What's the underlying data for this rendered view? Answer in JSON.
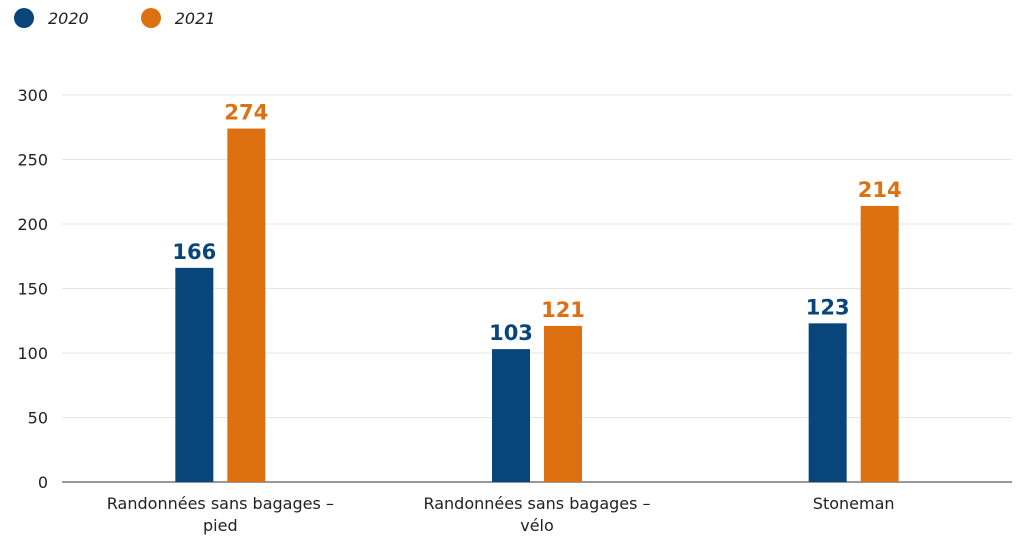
{
  "chart_data": {
    "type": "bar",
    "categories": [
      [
        "Randonnées sans bagages –",
        "pied"
      ],
      [
        "Randonnées sans bagages –",
        "vélo"
      ],
      [
        "Stoneman"
      ]
    ],
    "series": [
      {
        "name": "2020",
        "color": "#07457b",
        "values": [
          166,
          103,
          123
        ]
      },
      {
        "name": "2021",
        "color": "#dd7011",
        "values": [
          274,
          121,
          214
        ]
      }
    ],
    "ylim": [
      0,
      300
    ],
    "yticks": [
      0,
      50,
      100,
      150,
      200,
      250,
      300
    ],
    "grid": true,
    "legend_position": "top-left",
    "data_labels": true,
    "xlabel": "",
    "ylabel": "",
    "title": ""
  }
}
